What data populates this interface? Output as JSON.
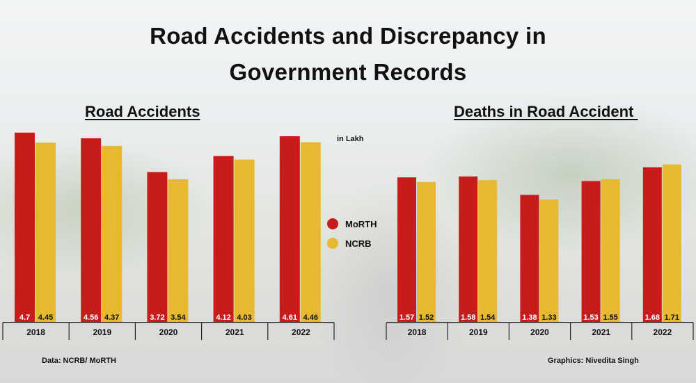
{
  "title": "Road Accidents and Discrepancy in\nGovernment Records",
  "unit_label": "in Lakh",
  "legend": [
    {
      "name": "MoRTH",
      "color": "#c81c1c"
    },
    {
      "name": "NCRB",
      "color": "#e8b830"
    }
  ],
  "source": "Data: NCRB/ MoRTH",
  "credit": "Graphics: Nivedita Singh",
  "chart_data": [
    {
      "type": "bar",
      "title": "Road Accidents",
      "categories": [
        "2018",
        "2019",
        "2020",
        "2021",
        "2022"
      ],
      "series": [
        {
          "name": "MoRTH",
          "values": [
            "4.7",
            "4.56",
            "3.72",
            "4.12",
            "4.61"
          ]
        },
        {
          "name": "NCRB",
          "values": [
            "4.45",
            "4.37",
            "3.54",
            "4.03",
            "4.46"
          ]
        }
      ],
      "ylim": [
        0,
        4.8
      ]
    },
    {
      "type": "bar",
      "title": "Deaths in Road Accident ",
      "categories": [
        "2018",
        "2019",
        "2020",
        "2021",
        "2022"
      ],
      "series": [
        {
          "name": "MoRTH",
          "values": [
            "1.57",
            "1.58",
            "1.38",
            "1.53",
            "1.68"
          ]
        },
        {
          "name": "NCRB",
          "values": [
            "1.52",
            "1.54",
            "1.33",
            "1.55",
            "1.71"
          ]
        }
      ],
      "ylim": [
        0,
        2.1
      ]
    }
  ]
}
